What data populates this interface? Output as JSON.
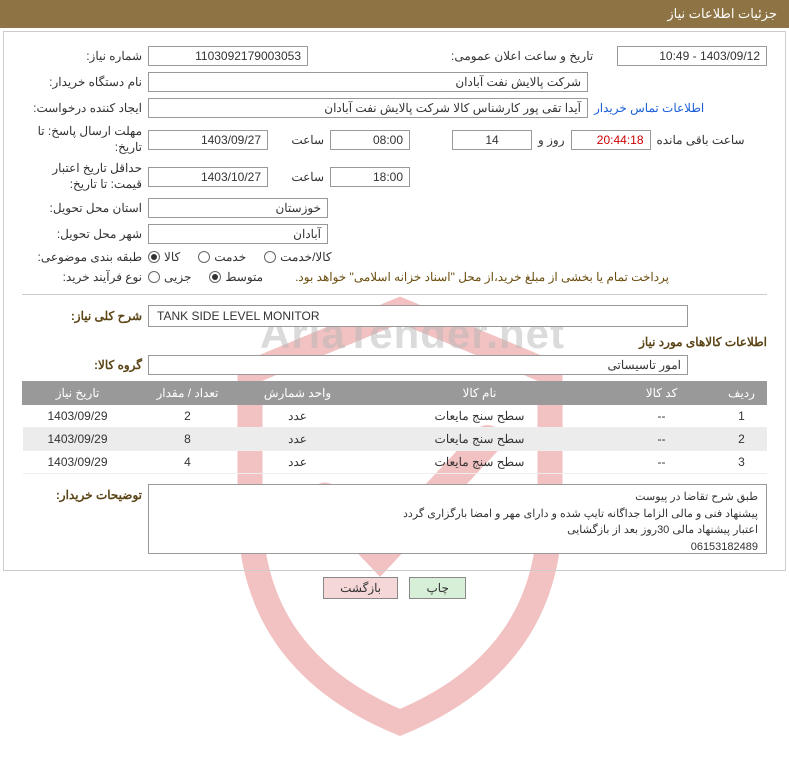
{
  "header": {
    "title": "جزئیات اطلاعات نیاز"
  },
  "fields": {
    "need_no_label": "شماره نیاز:",
    "need_no": "1103092179003053",
    "announce_label": "تاریخ و ساعت اعلان عمومی:",
    "announce_val": "1403/09/12 - 10:49",
    "buyer_org_label": "نام دستگاه خریدار:",
    "buyer_org": "شرکت پالایش نفت آبادان",
    "creator_label": "ایجاد کننده درخواست:",
    "creator": "آیدا تقی پور کارشناس کالا شرکت پالایش نفت آبادان",
    "contact_link": "اطلاعات تماس خریدار",
    "reply_deadline_label": "مهلت ارسال پاسخ: تا تاریخ:",
    "reply_date": "1403/09/27",
    "hour_label": "ساعت",
    "reply_hour": "08:00",
    "days": "14",
    "days_suffix": "روز و",
    "countdown": "20:44:18",
    "countdown_suffix": "ساعت باقی مانده",
    "price_valid_label": "حداقل تاریخ اعتبار قیمت: تا تاریخ:",
    "price_date": "1403/10/27",
    "price_hour": "18:00",
    "province_label": "استان محل تحویل:",
    "province": "خوزستان",
    "city_label": "شهر محل تحویل:",
    "city": "آبادان",
    "category_label": "طبقه بندی موضوعی:",
    "category_opts": {
      "a": "کالا",
      "b": "خدمت",
      "c": "کالا/خدمت"
    },
    "purchase_type_label": "نوع فرآیند خرید:",
    "purchase_opts": {
      "a": "جزیی",
      "b": "متوسط"
    },
    "purchase_note": "پرداخت تمام یا بخشی از مبلغ خرید،از محل \"اسناد خزانه اسلامی\" خواهد بود.",
    "desc_label": "شرح کلی نیاز:",
    "desc_val": "TANK SIDE LEVEL MONITOR",
    "goods_info_title": "اطلاعات کالاهای مورد نیاز",
    "group_label": "گروه کالا:",
    "group_val": "امور تاسیساتی",
    "notes_label": "توضیحات خریدار:",
    "notes_val": "طبق شرح تقاضا در پیوست\nپیشنهاد فنی و مالی الزاما جداگانه تایپ شده و دارای مهر و امضا بارگزاری گردد\nاعتبار پیشنهاد مالی 30روز بعد از بازگشایی\n06153182489"
  },
  "table": {
    "headers": {
      "row": "ردیف",
      "code": "کد کالا",
      "name": "نام کالا",
      "unit": "واحد شمارش",
      "qty": "تعداد / مقدار",
      "date": "تاریخ نیاز"
    },
    "rows": [
      {
        "n": "1",
        "code": "--",
        "name": "سطح سنج مایعات",
        "unit": "عدد",
        "qty": "2",
        "date": "1403/09/29"
      },
      {
        "n": "2",
        "code": "--",
        "name": "سطح سنج مایعات",
        "unit": "عدد",
        "qty": "8",
        "date": "1403/09/29"
      },
      {
        "n": "3",
        "code": "--",
        "name": "سطح سنج مایعات",
        "unit": "عدد",
        "qty": "4",
        "date": "1403/09/29"
      }
    ]
  },
  "buttons": {
    "print": "چاپ",
    "back": "بازگشت"
  },
  "colors": {
    "header_bg": "#8e7344",
    "th_bg": "#999999",
    "row_alt": "#ececec",
    "link": "#1a5fdb",
    "note": "#6b4e0f"
  }
}
